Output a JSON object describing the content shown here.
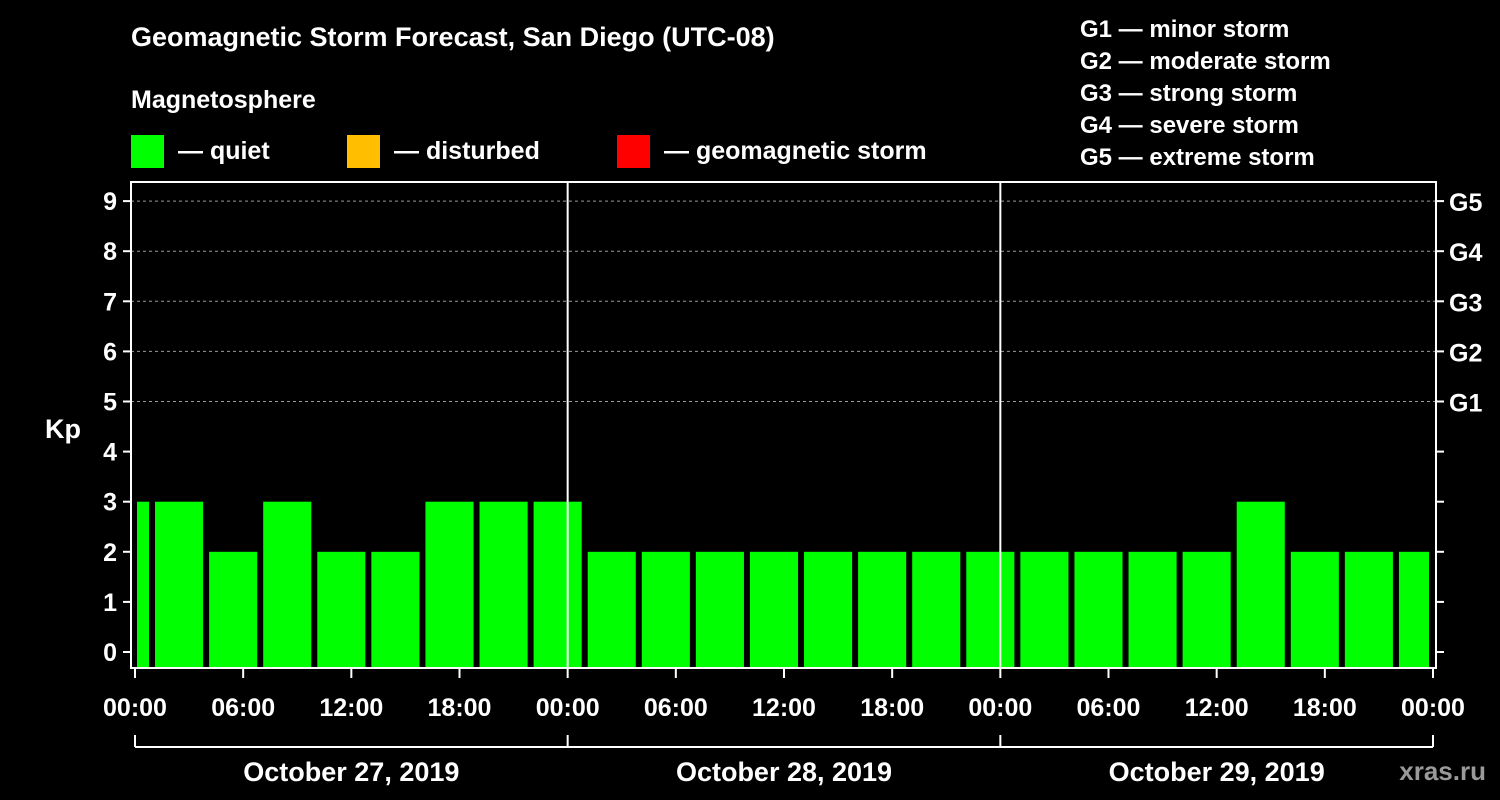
{
  "title": "Geomagnetic Storm Forecast, San Diego (UTC-08)",
  "subtitle": "Magnetosphere",
  "legend": [
    {
      "label": "— quiet",
      "color": "#00ff00"
    },
    {
      "label": "— disturbed",
      "color": "#ffbf00"
    },
    {
      "label": "— geomagnetic storm",
      "color": "#ff0000"
    }
  ],
  "g_scale": [
    "G1 — minor storm",
    "G2 — moderate storm",
    "G3 — strong storm",
    "G4 — severe storm",
    "G5 — extreme storm"
  ],
  "credit": "xras.ru",
  "chart_data": {
    "type": "bar",
    "ylabel": "Kp",
    "ylim": [
      0,
      9
    ],
    "yticks": [
      "0",
      "1",
      "2",
      "3",
      "4",
      "5",
      "6",
      "7",
      "8",
      "9"
    ],
    "right_ticks": [
      {
        "kp": 5,
        "label": "G1"
      },
      {
        "kp": 6,
        "label": "G2"
      },
      {
        "kp": 7,
        "label": "G3"
      },
      {
        "kp": 8,
        "label": "G4"
      },
      {
        "kp": 9,
        "label": "G5"
      }
    ],
    "grid": "horizontal dashed",
    "xticks": [
      "00:00",
      "06:00",
      "12:00",
      "18:00",
      "00:00",
      "06:00",
      "12:00",
      "18:00",
      "00:00",
      "06:00",
      "12:00",
      "18:00",
      "00:00"
    ],
    "dates": [
      "October 27, 2019",
      "October 28, 2019",
      "October 29, 2019"
    ],
    "bar_color": "#00ff00",
    "bars": [
      {
        "start": "2019-10-27 00:00",
        "end": "2019-10-27 01:00",
        "kp": 3
      },
      {
        "start": "2019-10-27 01:00",
        "end": "2019-10-27 04:00",
        "kp": 3
      },
      {
        "start": "2019-10-27 04:00",
        "end": "2019-10-27 07:00",
        "kp": 2
      },
      {
        "start": "2019-10-27 07:00",
        "end": "2019-10-27 10:00",
        "kp": 3
      },
      {
        "start": "2019-10-27 10:00",
        "end": "2019-10-27 13:00",
        "kp": 2
      },
      {
        "start": "2019-10-27 13:00",
        "end": "2019-10-27 16:00",
        "kp": 2
      },
      {
        "start": "2019-10-27 16:00",
        "end": "2019-10-27 19:00",
        "kp": 3
      },
      {
        "start": "2019-10-27 19:00",
        "end": "2019-10-27 22:00",
        "kp": 3
      },
      {
        "start": "2019-10-27 22:00",
        "end": "2019-10-28 01:00",
        "kp": 3
      },
      {
        "start": "2019-10-28 01:00",
        "end": "2019-10-28 04:00",
        "kp": 2
      },
      {
        "start": "2019-10-28 04:00",
        "end": "2019-10-28 07:00",
        "kp": 2
      },
      {
        "start": "2019-10-28 07:00",
        "end": "2019-10-28 10:00",
        "kp": 2
      },
      {
        "start": "2019-10-28 10:00",
        "end": "2019-10-28 13:00",
        "kp": 2
      },
      {
        "start": "2019-10-28 13:00",
        "end": "2019-10-28 16:00",
        "kp": 2
      },
      {
        "start": "2019-10-28 16:00",
        "end": "2019-10-28 19:00",
        "kp": 2
      },
      {
        "start": "2019-10-28 19:00",
        "end": "2019-10-28 22:00",
        "kp": 2
      },
      {
        "start": "2019-10-28 22:00",
        "end": "2019-10-29 01:00",
        "kp": 2
      },
      {
        "start": "2019-10-29 01:00",
        "end": "2019-10-29 04:00",
        "kp": 2
      },
      {
        "start": "2019-10-29 04:00",
        "end": "2019-10-29 07:00",
        "kp": 2
      },
      {
        "start": "2019-10-29 07:00",
        "end": "2019-10-29 10:00",
        "kp": 2
      },
      {
        "start": "2019-10-29 10:00",
        "end": "2019-10-29 13:00",
        "kp": 2
      },
      {
        "start": "2019-10-29 13:00",
        "end": "2019-10-29 16:00",
        "kp": 3
      },
      {
        "start": "2019-10-29 16:00",
        "end": "2019-10-29 19:00",
        "kp": 2
      },
      {
        "start": "2019-10-29 19:00",
        "end": "2019-10-29 22:00",
        "kp": 2
      },
      {
        "start": "2019-10-29 22:00",
        "end": "2019-10-30 00:00",
        "kp": 2
      }
    ]
  }
}
